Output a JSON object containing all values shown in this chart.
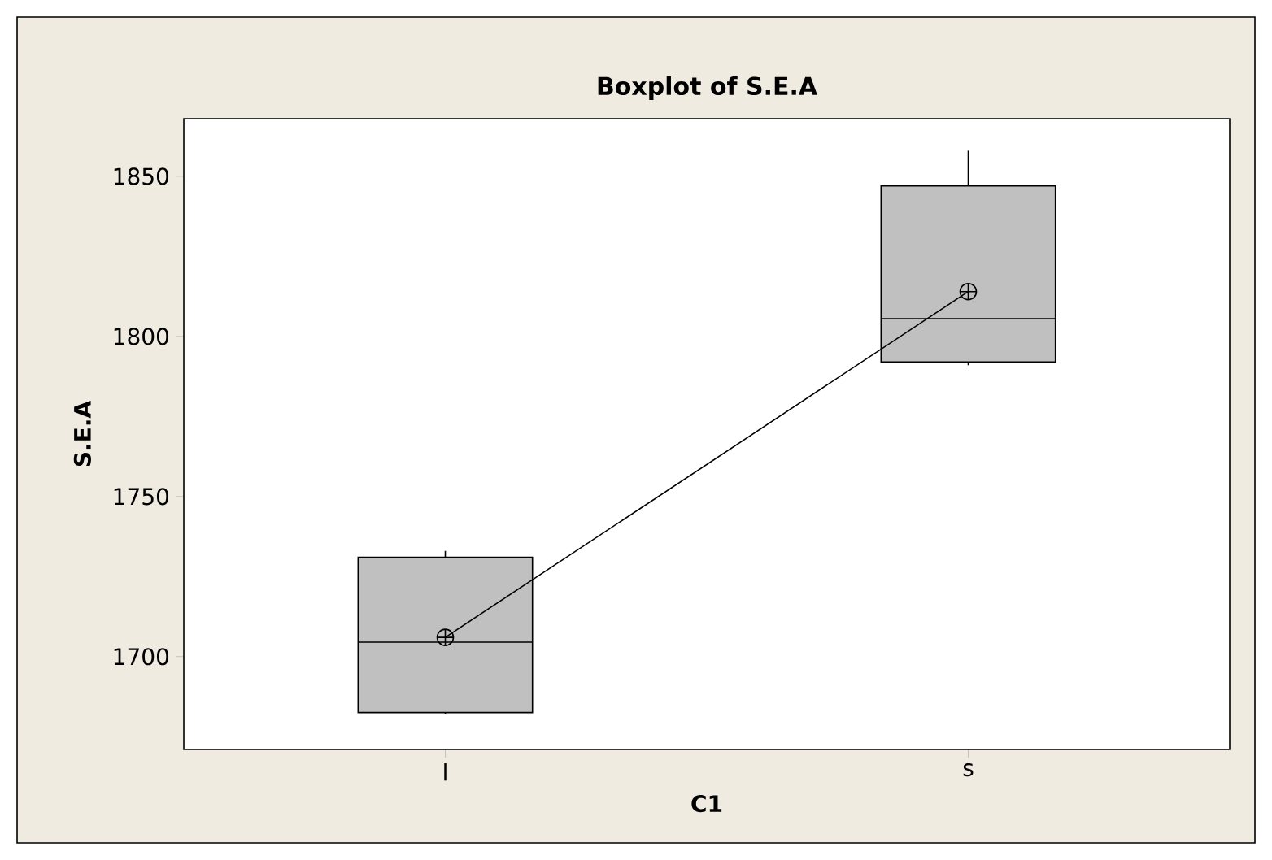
{
  "chart_data": {
    "type": "box",
    "title": "Boxplot of S.E.A",
    "xlabel": "C1",
    "ylabel": "S.E.A",
    "categories": [
      "l",
      "s"
    ],
    "ylim": [
      1671,
      1868
    ],
    "yticks": [
      1700,
      1750,
      1800,
      1850
    ],
    "color": "#c0c0c0",
    "boxes": [
      {
        "low": 1682,
        "q1": 1682.5,
        "median": 1704.5,
        "q3": 1731,
        "high": 1733,
        "mean": 1706
      },
      {
        "low": 1791,
        "q1": 1792,
        "median": 1805.5,
        "q3": 1847,
        "high": 1858,
        "mean": 1814
      }
    ],
    "series": [
      {
        "type": "line",
        "color": "#000000",
        "values": [
          1706,
          1814
        ]
      }
    ]
  }
}
